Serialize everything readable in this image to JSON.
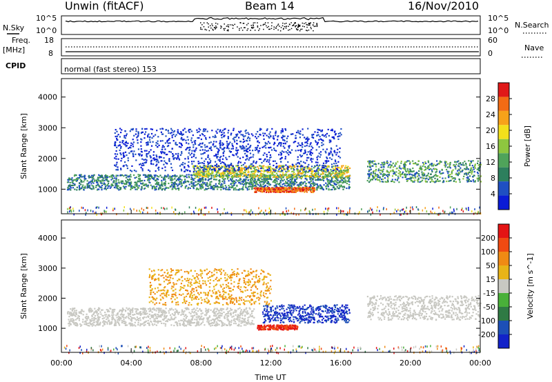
{
  "header": {
    "station": "Unwin (fitACF)",
    "beam": "Beam 14",
    "date": "16/Nov/2010"
  },
  "status_panel": {
    "nsky_label": "N.Sky",
    "nsky_ticks": [
      "10^5",
      "10^0"
    ],
    "nsearch_label": "N.Search",
    "nsearch_ticks": [
      "10^5",
      "10^0"
    ],
    "freq_label": "Freq.",
    "freq_unit": "[MHz]",
    "freq_ticks": [
      "18",
      "8"
    ],
    "nave_label": "Nave",
    "nave_ticks": [
      "60",
      "0"
    ],
    "cpid_label": "CPID",
    "cpid_value": "normal (fast stereo) 153"
  },
  "chart_data": [
    {
      "type": "heatmap",
      "name": "power",
      "xlabel": "Time UT",
      "ylabel": "Slant Range [km]",
      "xlim": [
        0,
        24
      ],
      "ylim": [
        200,
        4600
      ],
      "yticks": [
        1000,
        2000,
        3000,
        4000
      ],
      "colorbar": {
        "label": "Power [dB]",
        "range": [
          0,
          32
        ],
        "ticks": [
          4,
          8,
          12,
          16,
          20,
          24,
          28
        ],
        "colors": [
          "#0a1bd6",
          "#1f4fc2",
          "#2d7f5d",
          "#4fa35a",
          "#8ec63f",
          "#f3e01b",
          "#f7a21a",
          "#f26b14",
          "#e01818"
        ]
      },
      "scatter_bands": [
        {
          "t_start": 0.3,
          "t_end": 16.5,
          "range_center": 1250,
          "range_width": 250,
          "level": "low-mid"
        },
        {
          "t_start": 7.5,
          "t_end": 16.5,
          "range_center": 1600,
          "range_width": 200,
          "level": "mid-high"
        },
        {
          "t_start": 11.0,
          "t_end": 14.5,
          "range_center": 1000,
          "range_width": 80,
          "level": "high"
        },
        {
          "t_start": 17.5,
          "t_end": 24.0,
          "range_center": 1600,
          "range_width": 350,
          "level": "mid"
        },
        {
          "t_start": 3.0,
          "t_end": 16.0,
          "range_center": 2300,
          "range_width": 700,
          "level": "low"
        }
      ]
    },
    {
      "type": "heatmap",
      "name": "velocity",
      "xlabel": "Time UT",
      "ylabel": "Slant Range [km]",
      "xlim": [
        0,
        24
      ],
      "ylim": [
        200,
        4600
      ],
      "yticks": [
        1000,
        2000,
        3000,
        4000
      ],
      "xticks": [
        "00:00",
        "04:00",
        "08:00",
        "12:00",
        "16:00",
        "20:00",
        "00:00"
      ],
      "colorbar": {
        "label": "Velocity [m s^-1]",
        "ticks": [
          200,
          100,
          50,
          15,
          -15,
          -50,
          -100,
          -200
        ],
        "colors": [
          "#1222c9",
          "#1d4fb7",
          "#2f7a44",
          "#49b039",
          "#c8c8c2",
          "#e8b418",
          "#f08a14",
          "#f04a12",
          "#e41414"
        ]
      },
      "scatter_bands": [
        {
          "t_start": 0.3,
          "t_end": 11.0,
          "range_center": 1400,
          "range_width": 300,
          "level": "gray"
        },
        {
          "t_start": 11.5,
          "t_end": 16.5,
          "range_center": 1500,
          "range_width": 300,
          "level": "blue"
        },
        {
          "t_start": 11.2,
          "t_end": 13.5,
          "range_center": 1050,
          "range_width": 80,
          "level": "red"
        },
        {
          "t_start": 17.5,
          "t_end": 24.0,
          "range_center": 1700,
          "range_width": 400,
          "level": "gray"
        },
        {
          "t_start": 5.0,
          "t_end": 12.0,
          "range_center": 2400,
          "range_width": 600,
          "level": "orange"
        }
      ]
    }
  ]
}
